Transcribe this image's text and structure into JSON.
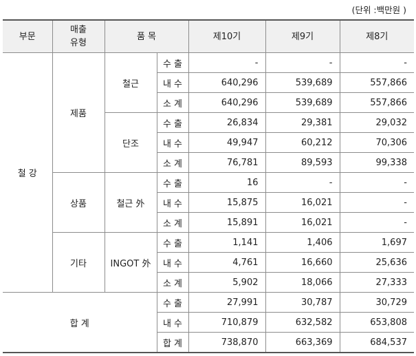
{
  "unit_note": "(단위 :백만원 )",
  "header": {
    "segment": "부문",
    "sales_type": "매출\n유형",
    "item": "품 목",
    "p10": "제10기",
    "p9": "제9기",
    "p8": "제8기"
  },
  "segment_label": "철 강",
  "groups": [
    {
      "type": "제품",
      "items": [
        {
          "name": "철근",
          "rows": [
            {
              "kind": "수 출",
              "p10": "-",
              "p9": "-",
              "p8": "-"
            },
            {
              "kind": "내 수",
              "p10": "640,296",
              "p9": "539,689",
              "p8": "557,866"
            },
            {
              "kind": "소 계",
              "p10": "640,296",
              "p9": "539,689",
              "p8": "557,866"
            }
          ]
        },
        {
          "name": "단조",
          "rows": [
            {
              "kind": "수 출",
              "p10": "26,834",
              "p9": "29,381",
              "p8": "29,032"
            },
            {
              "kind": "내 수",
              "p10": "49,947",
              "p9": "60,212",
              "p8": "70,306"
            },
            {
              "kind": "소 계",
              "p10": "76,781",
              "p9": "89,593",
              "p8": "99,338"
            }
          ]
        }
      ]
    },
    {
      "type": "상품",
      "items": [
        {
          "name": "철근 外",
          "rows": [
            {
              "kind": "수 출",
              "p10": "16",
              "p9": "-",
              "p8": "-"
            },
            {
              "kind": "내 수",
              "p10": "15,875",
              "p9": "16,021",
              "p8": "-"
            },
            {
              "kind": "소 계",
              "p10": "15,891",
              "p9": "16,021",
              "p8": "-"
            }
          ]
        }
      ]
    },
    {
      "type": "기타",
      "items": [
        {
          "name": "INGOT 外",
          "rows": [
            {
              "kind": "수 출",
              "p10": "1,141",
              "p9": "1,406",
              "p8": "1,697"
            },
            {
              "kind": "내 수",
              "p10": "4,761",
              "p9": "16,660",
              "p8": "25,636"
            },
            {
              "kind": "소 계",
              "p10": "5,902",
              "p9": "18,066",
              "p8": "27,333"
            }
          ]
        }
      ]
    }
  ],
  "total": {
    "label": "합 계",
    "rows": [
      {
        "kind": "수 출",
        "p10": "27,991",
        "p9": "30,787",
        "p8": "30,729"
      },
      {
        "kind": "내 수",
        "p10": "710,879",
        "p9": "632,582",
        "p8": "653,808"
      },
      {
        "kind": "합 계",
        "p10": "738,870",
        "p9": "663,369",
        "p8": "684,537"
      }
    ]
  }
}
